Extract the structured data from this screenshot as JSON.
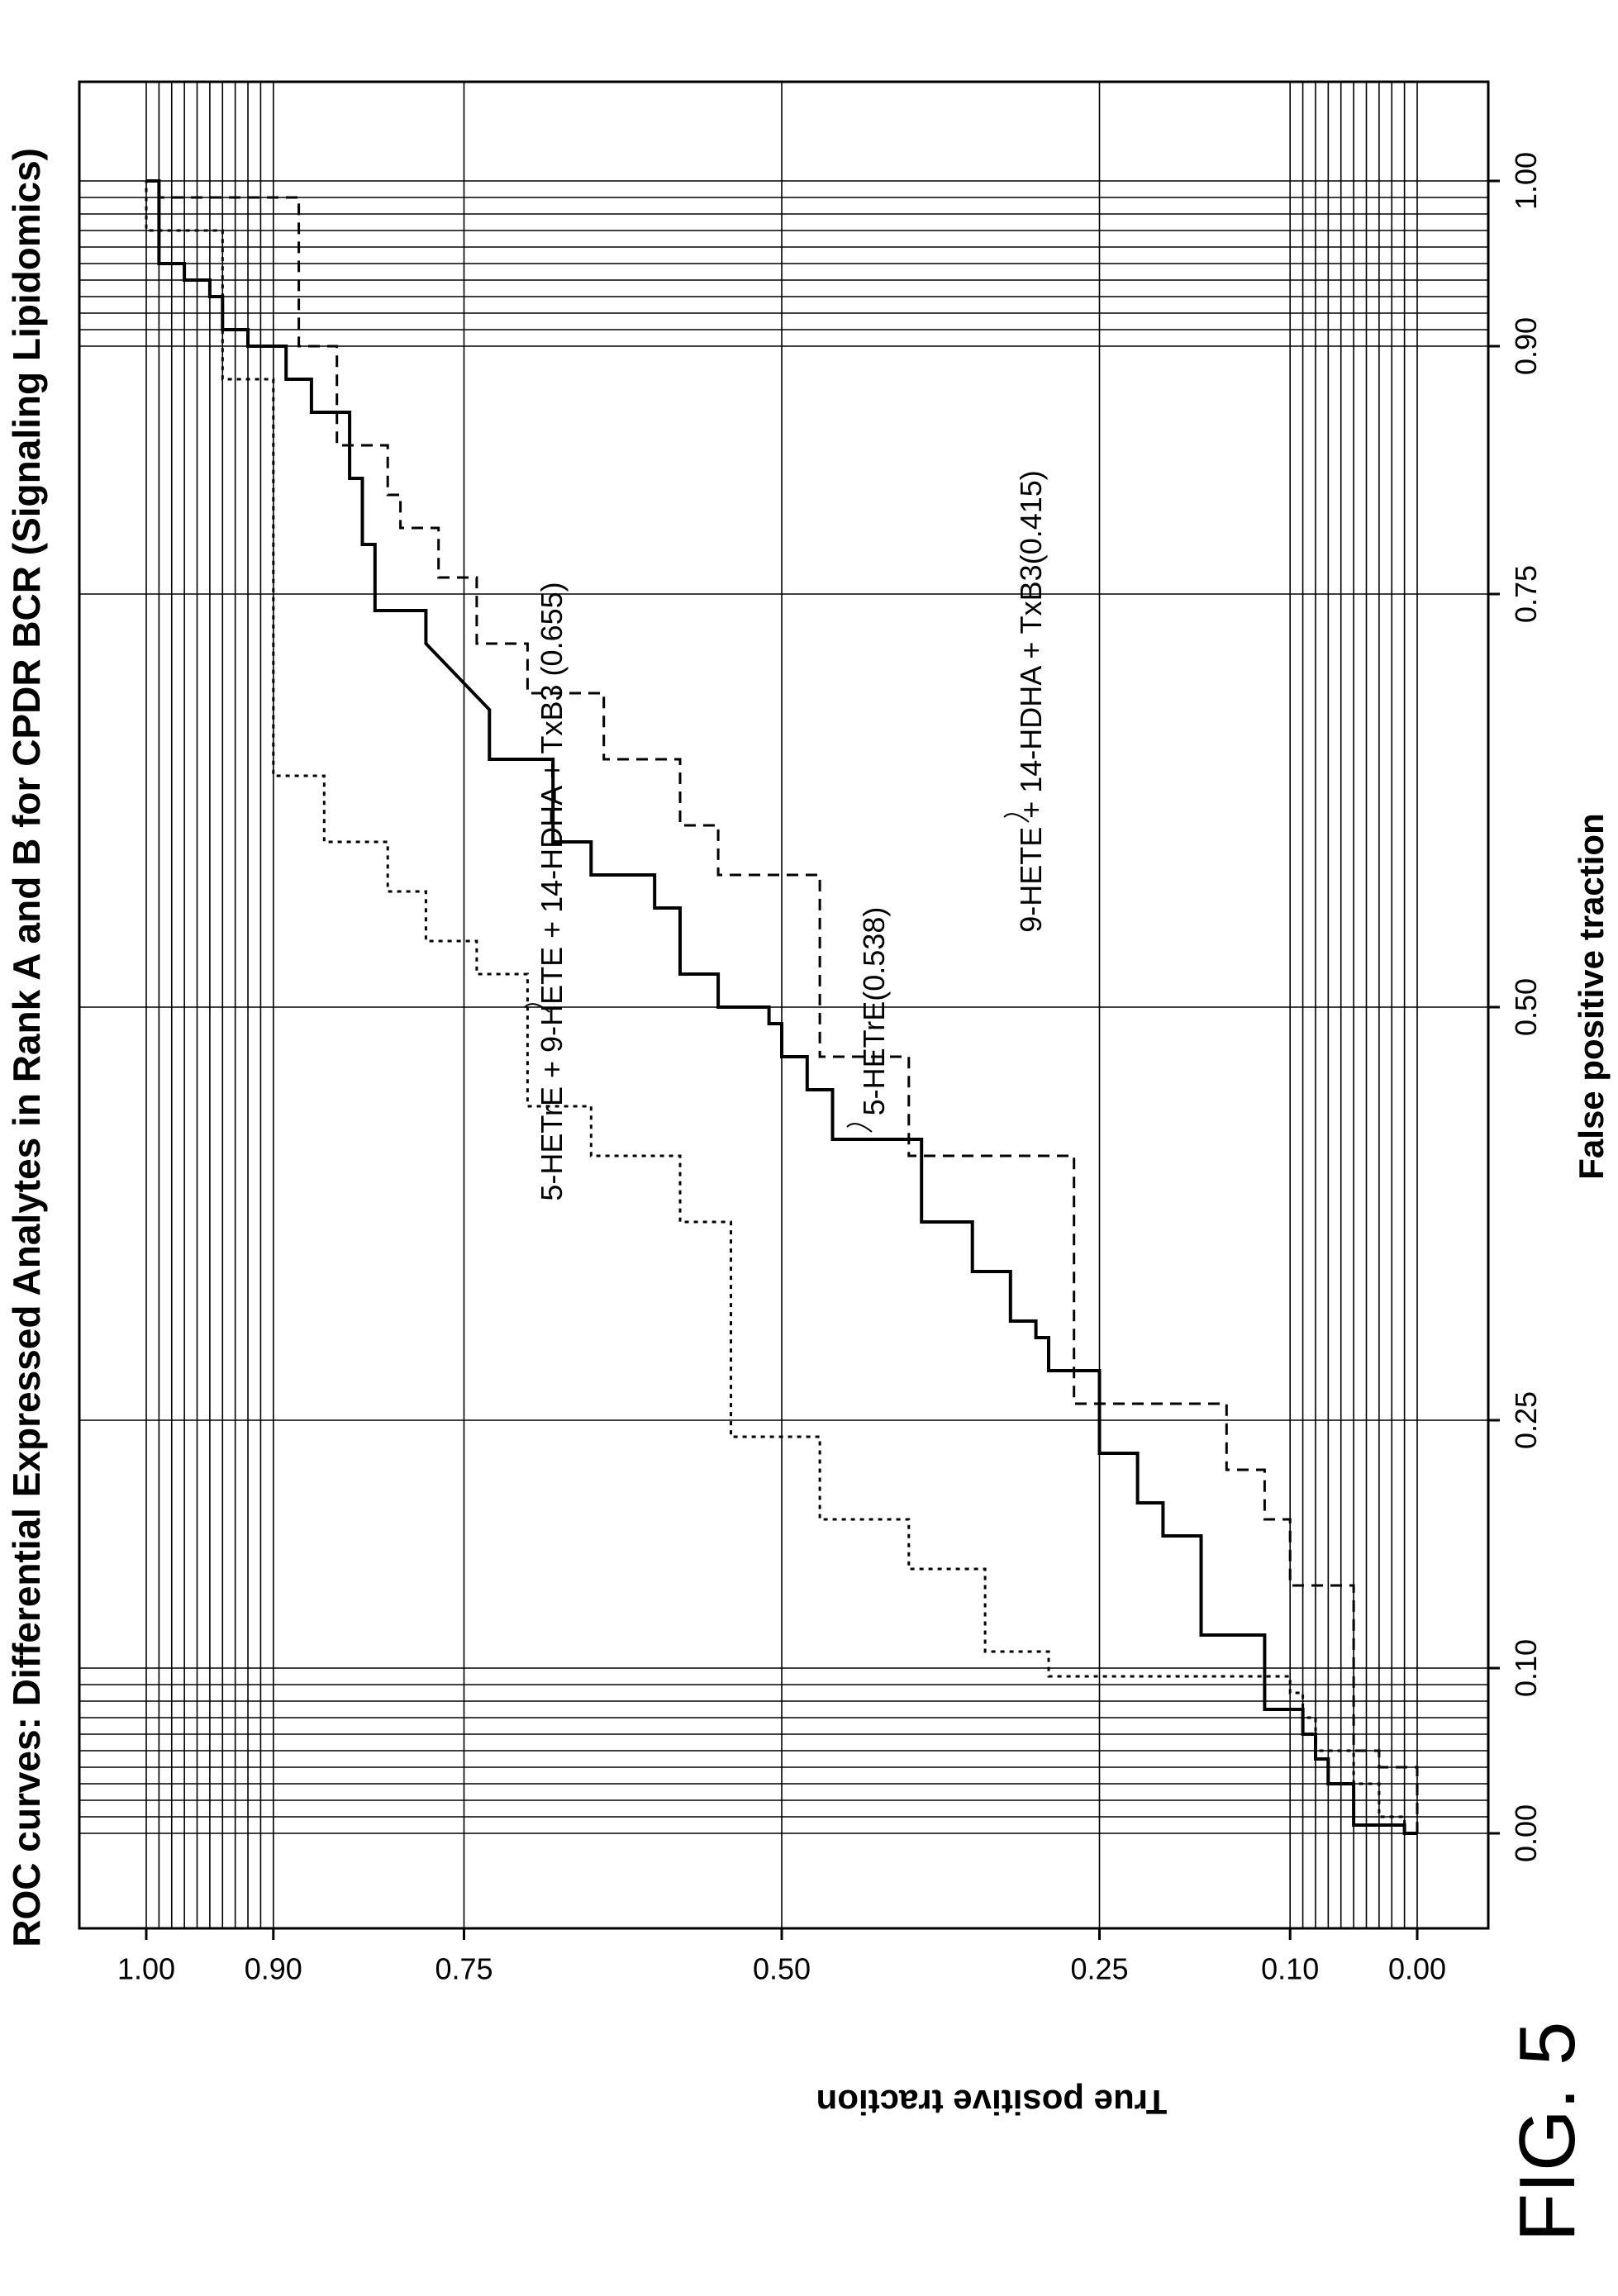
{
  "chart_data": {
    "type": "line",
    "title": "ROC curves: Differential Expressed Analytes in Rank A and B for CPDR BCR (Signaling Lipidomics)",
    "xlabel": "False positive traction",
    "ylabel": "True positive traction",
    "xlim": [
      -0.1,
      1.1
    ],
    "ylim": [
      -0.1,
      1.1
    ],
    "x_ticks": [
      "0.00",
      "0.10",
      "0.25",
      "0.50",
      "0.75",
      "0.90",
      "1.00"
    ],
    "y_ticks": [
      "0.00",
      "0.10",
      "0.25",
      "0.50",
      "0.75",
      "0.90",
      "1.00"
    ],
    "grid": true,
    "series": [
      {
        "name": "5-HETrE(0.538)",
        "style": "solid",
        "points": [
          [
            0,
            0
          ],
          [
            0,
            0.01
          ],
          [
            0.005,
            0.01
          ],
          [
            0.005,
            0.05
          ],
          [
            0.03,
            0.05
          ],
          [
            0.03,
            0.07
          ],
          [
            0.045,
            0.07
          ],
          [
            0.045,
            0.08
          ],
          [
            0.06,
            0.08
          ],
          [
            0.06,
            0.09
          ],
          [
            0.075,
            0.09
          ],
          [
            0.075,
            0.12
          ],
          [
            0.12,
            0.12
          ],
          [
            0.12,
            0.17
          ],
          [
            0.18,
            0.17
          ],
          [
            0.18,
            0.2
          ],
          [
            0.2,
            0.2
          ],
          [
            0.2,
            0.22
          ],
          [
            0.23,
            0.22
          ],
          [
            0.23,
            0.25
          ],
          [
            0.28,
            0.25
          ],
          [
            0.28,
            0.29
          ],
          [
            0.3,
            0.29
          ],
          [
            0.3,
            0.3
          ],
          [
            0.31,
            0.3
          ],
          [
            0.31,
            0.32
          ],
          [
            0.34,
            0.32
          ],
          [
            0.34,
            0.35
          ],
          [
            0.37,
            0.35
          ],
          [
            0.37,
            0.39
          ],
          [
            0.42,
            0.39
          ],
          [
            0.42,
            0.46
          ],
          [
            0.45,
            0.46
          ],
          [
            0.45,
            0.48
          ],
          [
            0.47,
            0.48
          ],
          [
            0.47,
            0.5
          ],
          [
            0.49,
            0.5
          ],
          [
            0.49,
            0.51
          ],
          [
            0.5,
            0.51
          ],
          [
            0.5,
            0.55
          ],
          [
            0.52,
            0.55
          ],
          [
            0.52,
            0.58
          ],
          [
            0.56,
            0.58
          ],
          [
            0.56,
            0.6
          ],
          [
            0.58,
            0.6
          ],
          [
            0.58,
            0.65
          ],
          [
            0.6,
            0.65
          ],
          [
            0.6,
            0.68
          ],
          [
            0.65,
            0.68
          ],
          [
            0.65,
            0.73
          ],
          [
            0.68,
            0.73
          ],
          [
            0.72,
            0.78
          ],
          [
            0.74,
            0.78
          ],
          [
            0.74,
            0.82
          ],
          [
            0.78,
            0.82
          ],
          [
            0.78,
            0.83
          ],
          [
            0.82,
            0.83
          ],
          [
            0.82,
            0.84
          ],
          [
            0.86,
            0.84
          ],
          [
            0.86,
            0.87
          ],
          [
            0.88,
            0.87
          ],
          [
            0.88,
            0.89
          ],
          [
            0.9,
            0.89
          ],
          [
            0.9,
            0.92
          ],
          [
            0.91,
            0.92
          ],
          [
            0.91,
            0.94
          ],
          [
            0.93,
            0.94
          ],
          [
            0.93,
            0.95
          ],
          [
            0.94,
            0.95
          ],
          [
            0.94,
            0.97
          ],
          [
            0.95,
            0.97
          ],
          [
            0.95,
            0.99
          ],
          [
            1,
            0.99
          ],
          [
            1,
            1
          ]
        ]
      },
      {
        "name": "5-HETrE + 9-HETE + 14-HDHA + TxB3 (0.655)",
        "style": "dotted",
        "points": [
          [
            0,
            0.01
          ],
          [
            0.01,
            0.01
          ],
          [
            0.01,
            0.03
          ],
          [
            0.03,
            0.03
          ],
          [
            0.03,
            0.05
          ],
          [
            0.05,
            0.05
          ],
          [
            0.05,
            0.08
          ],
          [
            0.07,
            0.08
          ],
          [
            0.07,
            0.09
          ],
          [
            0.085,
            0.09
          ],
          [
            0.085,
            0.1
          ],
          [
            0.095,
            0.1
          ],
          [
            0.095,
            0.29
          ],
          [
            0.11,
            0.29
          ],
          [
            0.11,
            0.34
          ],
          [
            0.16,
            0.34
          ],
          [
            0.16,
            0.4
          ],
          [
            0.19,
            0.4
          ],
          [
            0.19,
            0.47
          ],
          [
            0.24,
            0.47
          ],
          [
            0.24,
            0.54
          ],
          [
            0.37,
            0.54
          ],
          [
            0.37,
            0.58
          ],
          [
            0.41,
            0.58
          ],
          [
            0.41,
            0.65
          ],
          [
            0.44,
            0.65
          ],
          [
            0.44,
            0.7
          ],
          [
            0.52,
            0.7
          ],
          [
            0.52,
            0.74
          ],
          [
            0.54,
            0.74
          ],
          [
            0.54,
            0.78
          ],
          [
            0.57,
            0.78
          ],
          [
            0.57,
            0.81
          ],
          [
            0.6,
            0.81
          ],
          [
            0.6,
            0.86
          ],
          [
            0.64,
            0.86
          ],
          [
            0.64,
            0.9
          ],
          [
            0.88,
            0.9
          ],
          [
            0.88,
            0.94
          ],
          [
            0.97,
            0.94
          ],
          [
            0.97,
            1
          ],
          [
            1,
            1
          ]
        ]
      },
      {
        "name": "9-HETE + 14-HDHA + TxB3(0.415)",
        "style": "dashed",
        "points": [
          [
            0,
            0
          ],
          [
            0.04,
            0
          ],
          [
            0.04,
            0.03
          ],
          [
            0.05,
            0.03
          ],
          [
            0.05,
            0.05
          ],
          [
            0.15,
            0.05
          ],
          [
            0.15,
            0.1
          ],
          [
            0.19,
            0.1
          ],
          [
            0.19,
            0.12
          ],
          [
            0.22,
            0.12
          ],
          [
            0.22,
            0.15
          ],
          [
            0.26,
            0.15
          ],
          [
            0.26,
            0.27
          ],
          [
            0.41,
            0.27
          ],
          [
            0.41,
            0.4
          ],
          [
            0.47,
            0.4
          ],
          [
            0.47,
            0.47
          ],
          [
            0.58,
            0.47
          ],
          [
            0.58,
            0.55
          ],
          [
            0.61,
            0.55
          ],
          [
            0.61,
            0.58
          ],
          [
            0.65,
            0.58
          ],
          [
            0.65,
            0.64
          ],
          [
            0.69,
            0.64
          ],
          [
            0.69,
            0.7
          ],
          [
            0.72,
            0.7
          ],
          [
            0.72,
            0.74
          ],
          [
            0.76,
            0.74
          ],
          [
            0.76,
            0.77
          ],
          [
            0.79,
            0.77
          ],
          [
            0.79,
            0.8
          ],
          [
            0.81,
            0.8
          ],
          [
            0.81,
            0.81
          ],
          [
            0.84,
            0.81
          ],
          [
            0.84,
            0.85
          ],
          [
            0.9,
            0.85
          ],
          [
            0.9,
            0.88
          ],
          [
            0.99,
            0.88
          ],
          [
            0.99,
            0.99
          ],
          [
            1,
            0.99
          ]
        ]
      }
    ],
    "labels": [
      {
        "series": 0,
        "text": "5-HETrE(0.538)"
      },
      {
        "series": 1,
        "text": "5-HETrE + 9-HETE + 14-HDHA + TxB3 (0.655)"
      },
      {
        "series": 2,
        "text": "9-HETE + 14-HDHA + TxB3(0.415)"
      }
    ]
  },
  "figure_label": "FIG. 5"
}
